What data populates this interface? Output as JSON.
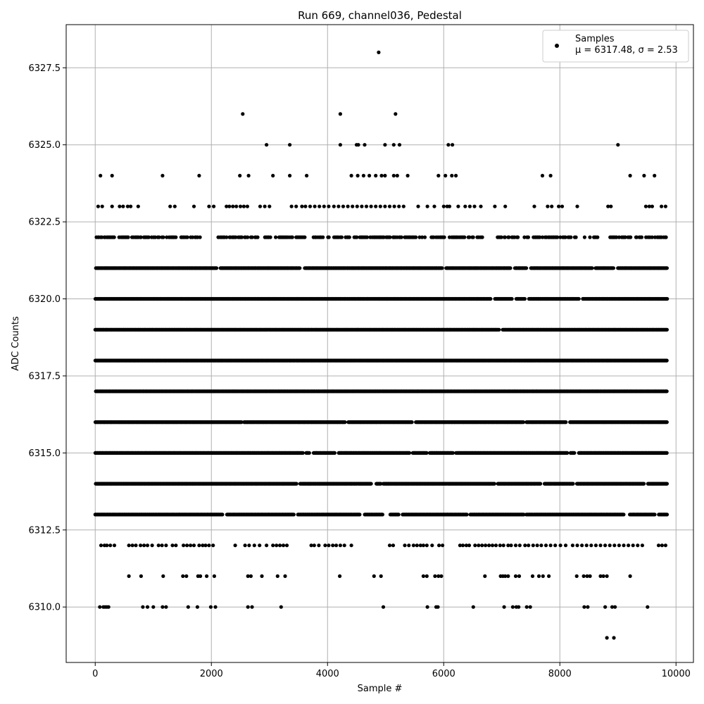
{
  "chart_data": {
    "type": "scatter",
    "title": "Run 669, channel036, Pedestal",
    "xlabel": "Sample #",
    "ylabel": "ADC Counts",
    "xlim": [
      -500,
      10300
    ],
    "ylim": [
      6308.2,
      6328.9
    ],
    "xticks": [
      0,
      2000,
      4000,
      6000,
      8000,
      10000
    ],
    "xtick_labels": [
      "0",
      "2000",
      "4000",
      "6000",
      "8000",
      "10000"
    ],
    "yticks": [
      6310.0,
      6312.5,
      6315.0,
      6317.5,
      6320.0,
      6322.5,
      6325.0,
      6327.5
    ],
    "ytick_labels": [
      "6310.0",
      "6312.5",
      "6315.0",
      "6317.5",
      "6320.0",
      "6322.5",
      "6325.0",
      "6327.5"
    ],
    "grid": true,
    "legend": {
      "position": "top-right",
      "label": "Samples",
      "stats": "μ = 6317.48, σ = 2.53"
    },
    "marker_color": "#000000",
    "series": [
      {
        "name": "Samples",
        "x_start": 0,
        "x_end": 9850,
        "levels": [
          {
            "y": 6309,
            "x": [
              8810,
              8930
            ]
          },
          {
            "y": 6310,
            "x": [
              80,
              140,
              170,
              200,
              230,
              820,
              900,
              1000,
              1160,
              1220,
              1600,
              1760,
              1990,
              2070,
              2630,
              2700,
              3200,
              4960,
              5720,
              5870,
              5900,
              6510,
              7040,
              7190,
              7250,
              7290,
              7430,
              7490,
              8420,
              8480,
              8780,
              8900,
              8950,
              9510
            ]
          },
          {
            "y": 6311,
            "x": [
              580,
              790,
              1170,
              1510,
              1570,
              1770,
              1810,
              1920,
              2050,
              2630,
              2680,
              2870,
              3140,
              3270,
              4210,
              4800,
              4920,
              5650,
              5710,
              5850,
              5910,
              5960,
              6710,
              6980,
              7020,
              7060,
              7110,
              7240,
              7300,
              7530,
              7640,
              7710,
              7810,
              8290,
              8410,
              8470,
              8520,
              8700,
              8750,
              8810,
              9210
            ]
          },
          {
            "y": 6312,
            "x": [
              100,
              160,
              200,
              260,
              330,
              580,
              640,
              700,
              780,
              840,
              900,
              980,
              1090,
              1150,
              1220,
              1330,
              1390,
              1520,
              1580,
              1640,
              1700,
              1790,
              1850,
              1900,
              1960,
              2030,
              2410,
              2580,
              2650,
              2740,
              2830,
              2950,
              3060,
              3120,
              3180,
              3240,
              3300,
              3720,
              3770,
              3850,
              3960,
              4020,
              4090,
              4150,
              4220,
              4290,
              4410,
              5070,
              5130,
              5330,
              5400,
              5480,
              5540,
              5600,
              5650,
              5710,
              5800,
              5920,
              5980,
              6280,
              6330,
              6390,
              6440,
              6540,
              6600,
              6660,
              6720,
              6780,
              6840,
              6900,
              6970,
              7030,
              7110,
              7160,
              7240,
              7310,
              7400,
              7460,
              7540,
              7610,
              7680,
              7760,
              7840,
              7920,
              8010,
              8100,
              8220,
              8300,
              8380,
              8460,
              8540,
              8620,
              8700,
              8780,
              8860,
              8940,
              9020,
              9100,
              9180,
              9260,
              9340,
              9420,
              9700,
              9760,
              9820
            ]
          },
          {
            "y": 6323,
            "x": [
              50,
              120,
              290,
              420,
              480,
              560,
              610,
              740,
              1290,
              1370,
              1700,
              1960,
              2040,
              2260,
              2310,
              2370,
              2430,
              2500,
              2560,
              2620,
              2840,
              2920,
              3000,
              3380,
              3460,
              3560,
              3620,
              3700,
              3780,
              3860,
              3940,
              4020,
              4110,
              4190,
              4270,
              4350,
              4430,
              4510,
              4590,
              4670,
              4750,
              4830,
              4910,
              4990,
              5070,
              5150,
              5230,
              5310,
              5560,
              5720,
              5840,
              6000,
              6060,
              6100,
              6250,
              6370,
              6450,
              6530,
              6640,
              6880,
              7060,
              7560,
              7790,
              7860,
              7980,
              8040,
              8300,
              8830,
              8880,
              9480,
              9540,
              9590,
              9750,
              9820
            ]
          },
          {
            "y": 6324,
            "x": [
              90,
              290,
              1160,
              1790,
              2490,
              2640,
              3060,
              3350,
              3640,
              4410,
              4520,
              4620,
              4720,
              4830,
              4930,
              4990,
              5140,
              5200,
              5380,
              5910,
              6030,
              6140,
              6210,
              7700,
              7840,
              9210,
              9450,
              9630
            ]
          },
          {
            "y": 6325,
            "x": [
              2950,
              3350,
              4220,
              4500,
              4530,
              4640,
              4990,
              5140,
              5240,
              6080,
              6150,
              9000
            ]
          },
          {
            "y": 6326,
            "x": [
              2540,
              4220,
              5170
            ]
          },
          {
            "y": 6328,
            "x": [
              4880
            ]
          }
        ],
        "dense_levels": [
          {
            "y": 6313,
            "gaps": [
              [
                2190,
                2260
              ],
              [
                3420,
                3480
              ],
              [
                4560,
                4640
              ],
              [
                4960,
                5080
              ],
              [
                5230,
                5290
              ],
              [
                6410,
                6450
              ],
              [
                7390,
                7420
              ],
              [
                9100,
                9200
              ],
              [
                9640,
                9700
              ]
            ]
          },
          {
            "y": 6314,
            "gaps": [
              [
                3470,
                3520
              ],
              [
                4760,
                4830
              ],
              [
                4920,
                4950
              ],
              [
                6880,
                6920
              ],
              [
                7670,
                7720
              ],
              [
                8230,
                8290
              ],
              [
                9460,
                9510
              ]
            ]
          },
          {
            "y": 6315,
            "gaps": [
              [
                3580,
                3630
              ],
              [
                3690,
                3760
              ],
              [
                4130,
                4190
              ],
              [
                5420,
                5460
              ],
              [
                5720,
                5760
              ],
              [
                6170,
                6210
              ],
              [
                8130,
                8180
              ],
              [
                8260,
                8320
              ]
            ]
          },
          {
            "y": 6316,
            "gaps": [
              [
                2520,
                2560
              ],
              [
                4300,
                4350
              ],
              [
                5460,
                5510
              ],
              [
                7380,
                7420
              ],
              [
                8120,
                8170
              ]
            ]
          },
          {
            "y": 6317,
            "gaps": []
          },
          {
            "y": 6318,
            "gaps": []
          },
          {
            "y": 6319,
            "gaps": [
              [
                6960,
                7010
              ]
            ]
          },
          {
            "y": 6320,
            "gaps": [
              [
                6820,
                6880
              ],
              [
                7180,
                7240
              ],
              [
                7400,
                7460
              ],
              [
                8330,
                8390
              ]
            ]
          },
          {
            "y": 6321,
            "gaps": [
              [
                2100,
                2150
              ],
              [
                3530,
                3600
              ],
              [
                5980,
                6040
              ],
              [
                7150,
                7220
              ],
              [
                7430,
                7500
              ],
              [
                8560,
                8610
              ],
              [
                8930,
                8990
              ]
            ]
          },
          {
            "y": 6322,
            "gaps": [
              [
                1390,
                1460
              ],
              [
                1820,
                2100
              ],
              [
                2830,
                2920
              ],
              [
                3620,
                3720
              ],
              [
                4380,
                4440
              ],
              [
                5680,
                5780
              ],
              [
                6670,
                6900
              ],
              [
                7300,
                7380
              ],
              [
                8280,
                8380
              ],
              [
                8700,
                8850
              ],
              [
                9230,
                9290
              ]
            ],
            "sparse": true
          }
        ]
      }
    ]
  }
}
